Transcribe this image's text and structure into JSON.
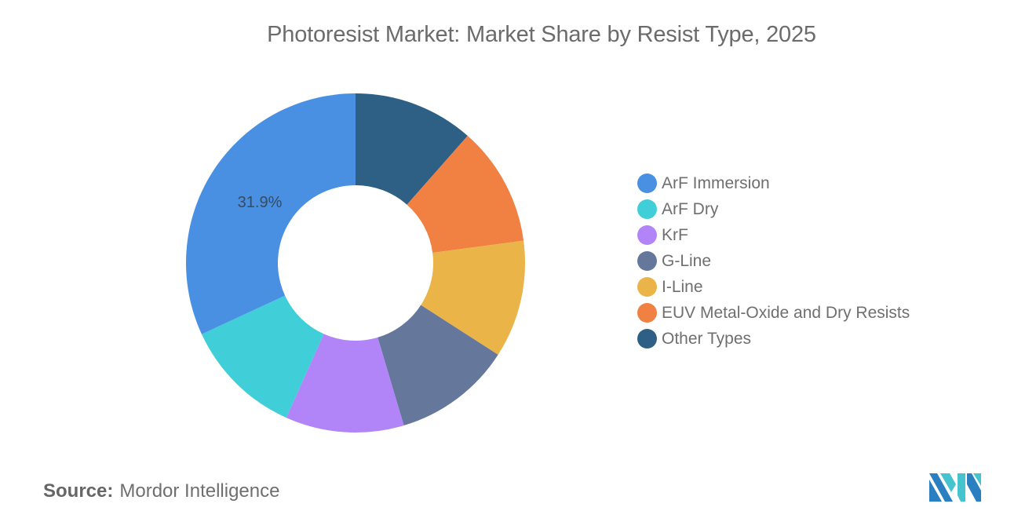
{
  "header": {
    "title": "Photoresist Market: Market Share by Resist Type, 2025"
  },
  "chart_data": {
    "type": "pie",
    "variant": "donut",
    "title": "Photoresist Market: Market Share by Resist Type, 2025",
    "categories": [
      "ArF Immersion",
      "ArF Dry",
      "KrF",
      "G-Line",
      "I-Line",
      "EUV Metal-Oxide and Dry Resists",
      "Other Types"
    ],
    "values": [
      31.9,
      11.4,
      11.3,
      11.3,
      11.2,
      11.4,
      11.5
    ],
    "colors": [
      "#4a90e2",
      "#40cfd8",
      "#b185f8",
      "#65789b",
      "#ebb449",
      "#f08143",
      "#2e5f85"
    ],
    "data_labels": [
      {
        "category": "ArF Immersion",
        "text": "31.9%"
      }
    ],
    "legend_position": "right",
    "start_angle_deg": 0,
    "direction": "counterclockwise-from-top (ArF Immersion drawn left of 12 o'clock)",
    "grid": false
  },
  "legend": {
    "items": [
      {
        "label": "ArF Immersion",
        "color": "#4a90e2"
      },
      {
        "label": "ArF Dry",
        "color": "#40cfd8"
      },
      {
        "label": "KrF",
        "color": "#b185f8"
      },
      {
        "label": "G-Line",
        "color": "#65789b"
      },
      {
        "label": "I-Line",
        "color": "#ebb449"
      },
      {
        "label": "EUV Metal-Oxide and Dry Resists",
        "color": "#f08143"
      },
      {
        "label": "Other Types",
        "color": "#2e5f85"
      }
    ]
  },
  "footer": {
    "source_key": "Source:",
    "source_value": "Mordor Intelligence"
  },
  "logo": {
    "name": "mordor-intelligence-logo",
    "colors": [
      "#2a7fc0",
      "#45c4cf"
    ]
  }
}
